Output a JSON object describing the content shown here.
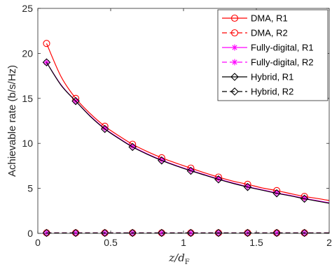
{
  "chart_data": {
    "type": "line",
    "xlabel_main": "z/d",
    "xlabel_sub": "F",
    "ylabel": "Achievable rate (b/s/Hz)",
    "xlim": [
      0,
      2
    ],
    "ylim": [
      0,
      25
    ],
    "xticks": [
      0,
      0.5,
      1,
      1.5,
      2
    ],
    "xtick_labels": [
      "0",
      "0.5",
      "1",
      "1.5",
      "2"
    ],
    "yticks": [
      0,
      5,
      10,
      15,
      20,
      25
    ],
    "ytick_labels": [
      "0",
      "5",
      "10",
      "15",
      "20",
      "25"
    ],
    "grid": false,
    "legend_position": "top-right",
    "series": [
      {
        "name": "DMA, R1",
        "color": "#ff0000",
        "dash": "solid",
        "marker": "circle",
        "x": [
          0.06,
          0.16,
          0.26,
          0.36,
          0.46,
          0.56,
          0.65,
          0.75,
          0.85,
          0.95,
          1.05,
          1.15,
          1.24,
          1.34,
          1.44,
          1.54,
          1.64,
          1.74,
          1.83,
          1.93,
          2.0
        ],
        "y": [
          21.1,
          17.4,
          15.0,
          13.3,
          11.9,
          10.8,
          9.9,
          9.1,
          8.4,
          7.8,
          7.25,
          6.7,
          6.25,
          5.8,
          5.45,
          5.05,
          4.75,
          4.4,
          4.1,
          3.85,
          3.65
        ]
      },
      {
        "name": "DMA, R2",
        "color": "#ff0000",
        "dash": "dashed",
        "marker": "circle",
        "x": [
          0.06,
          0.26,
          0.46,
          0.65,
          0.85,
          1.05,
          1.24,
          1.44,
          1.64,
          1.83,
          2.0
        ],
        "y": [
          0.05,
          0.05,
          0.05,
          0.05,
          0.05,
          0.05,
          0.05,
          0.05,
          0.05,
          0.05,
          0.05
        ]
      },
      {
        "name": "Fully-digital, R1",
        "color": "#ff00ff",
        "dash": "solid",
        "marker": "asterisk",
        "x": [
          0.06,
          0.16,
          0.26,
          0.36,
          0.46,
          0.56,
          0.65,
          0.75,
          0.85,
          0.95,
          1.05,
          1.15,
          1.24,
          1.34,
          1.44,
          1.54,
          1.64,
          1.74,
          1.83,
          1.93,
          2.0
        ],
        "y": [
          19.0,
          16.5,
          14.7,
          13.05,
          11.65,
          10.55,
          9.65,
          8.85,
          8.15,
          7.55,
          7.0,
          6.5,
          6.05,
          5.6,
          5.2,
          4.85,
          4.5,
          4.2,
          3.9,
          3.6,
          3.4
        ]
      },
      {
        "name": "Fully-digital, R2",
        "color": "#ff00ff",
        "dash": "dashed",
        "marker": "asterisk",
        "x": [
          0.06,
          0.26,
          0.46,
          0.65,
          0.85,
          1.05,
          1.24,
          1.44,
          1.64,
          1.83,
          2.0
        ],
        "y": [
          0.05,
          0.05,
          0.05,
          0.05,
          0.05,
          0.05,
          0.05,
          0.05,
          0.05,
          0.05,
          0.05
        ]
      },
      {
        "name": "Hybrid, R1",
        "color": "#000000",
        "dash": "solid",
        "marker": "diamond",
        "x": [
          0.06,
          0.16,
          0.26,
          0.36,
          0.46,
          0.56,
          0.65,
          0.75,
          0.85,
          0.95,
          1.05,
          1.15,
          1.24,
          1.34,
          1.44,
          1.54,
          1.64,
          1.74,
          1.83,
          1.93,
          2.0
        ],
        "y": [
          19.0,
          16.45,
          14.7,
          13.0,
          11.6,
          10.5,
          9.6,
          8.8,
          8.1,
          7.5,
          6.95,
          6.45,
          6.0,
          5.55,
          5.15,
          4.8,
          4.45,
          4.15,
          3.85,
          3.55,
          3.35
        ]
      },
      {
        "name": "Hybrid, R2",
        "color": "#000000",
        "dash": "dashed",
        "marker": "diamond",
        "x": [
          0.06,
          0.26,
          0.46,
          0.65,
          0.85,
          1.05,
          1.24,
          1.44,
          1.64,
          1.83,
          2.0
        ],
        "y": [
          0.05,
          0.05,
          0.05,
          0.05,
          0.05,
          0.05,
          0.05,
          0.05,
          0.05,
          0.05,
          0.05
        ]
      }
    ],
    "marker_x": [
      0.06,
      0.26,
      0.46,
      0.65,
      0.85,
      1.05,
      1.24,
      1.44,
      1.64,
      1.83
    ]
  }
}
